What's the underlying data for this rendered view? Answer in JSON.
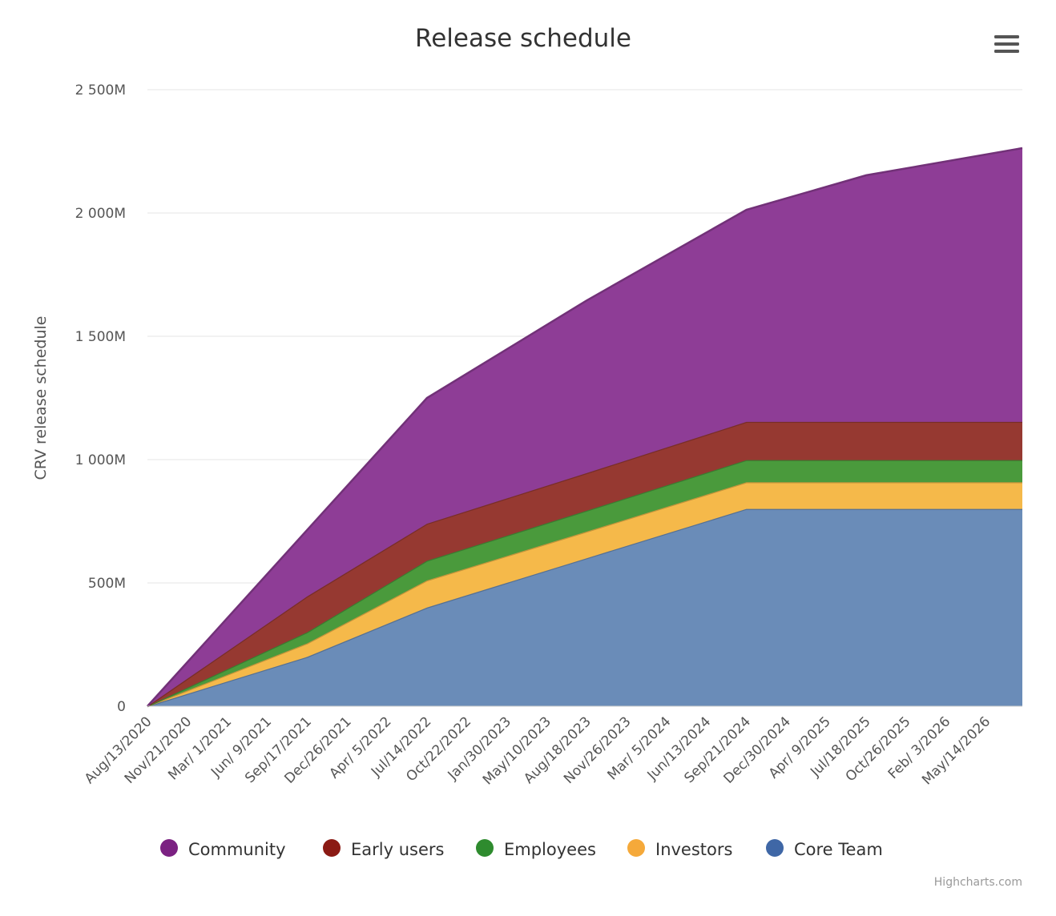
{
  "menu_icon": "hamburger-menu-icon",
  "credit": "Highcharts.com",
  "chart_data": {
    "type": "area",
    "stacked": true,
    "title": "Release schedule",
    "ylabel": "CRV release schedule",
    "xlabel": "",
    "ylim": [
      0,
      2500
    ],
    "yticks": [
      0,
      500,
      1000,
      1500,
      2000,
      2500
    ],
    "ytick_labels": [
      "0",
      "500M",
      "1 000M",
      "1 500M",
      "2 000M",
      "2 500M"
    ],
    "grid": true,
    "legend_position": "bottom",
    "x_labels": [
      "Aug/13/2020",
      "Nov/21/2020",
      "Mar/ 1/2021",
      "Jun/ 9/2021",
      "Sep/17/2021",
      "Dec/26/2021",
      "Apr/ 5/2022",
      "Jul/14/2022",
      "Oct/22/2022",
      "Jan/30/2023",
      "May/10/2023",
      "Aug/18/2023",
      "Nov/26/2023",
      "Mar/ 5/2024",
      "Jun/13/2024",
      "Sep/21/2024",
      "Dec/30/2024",
      "Apr/ 9/2025",
      "Jul/18/2025",
      "Oct/26/2025",
      "Feb/ 3/2026",
      "May/14/2026"
    ],
    "x": [
      "Aug/13/2020",
      "Sep/17/2021",
      "Jul/14/2022",
      "Aug/18/2023",
      "Sep/21/2024",
      "Jul/18/2025",
      "Aug/13/2026"
    ],
    "series": [
      {
        "name": "Community",
        "color": "#8e3d96",
        "values": [
          0,
          270,
          510,
          700,
          860,
          1000,
          1110
        ]
      },
      {
        "name": "Early users",
        "color": "#963931",
        "values": [
          0,
          145,
          150,
          152,
          155,
          155,
          155
        ]
      },
      {
        "name": "Employees",
        "color": "#4a9a3c",
        "values": [
          0,
          45,
          80,
          85,
          90,
          90,
          90
        ]
      },
      {
        "name": "Investors",
        "color": "#f5b94a",
        "values": [
          0,
          55,
          110,
          108,
          108,
          108,
          108
        ]
      },
      {
        "name": "Core Team",
        "color": "#6a8cb8",
        "values": [
          0,
          200,
          400,
          600,
          800,
          800,
          800
        ]
      }
    ],
    "legend_colors": [
      "#7b2182",
      "#8b1a14",
      "#2e8b2e",
      "#f5a93a",
      "#3f67a6"
    ]
  }
}
